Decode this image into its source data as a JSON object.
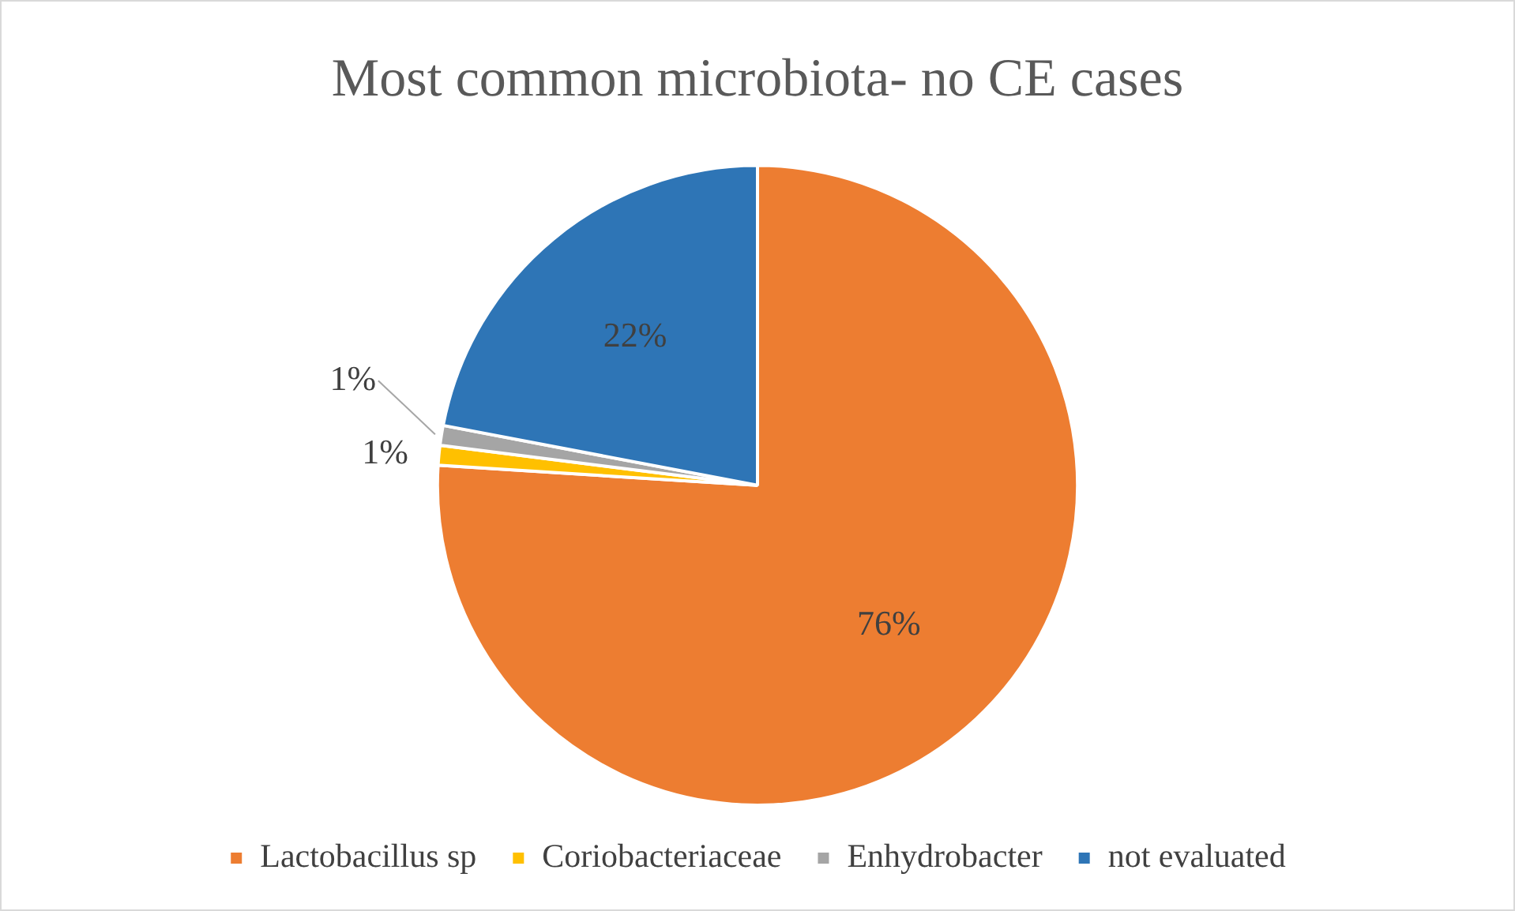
{
  "chart_data": {
    "type": "pie",
    "title": "Most common microbiota- no CE cases",
    "categories": [
      "Lactobacillus sp",
      "Coriobacteriaceae",
      "Enhydrobacter",
      "not evaluated"
    ],
    "values": [
      76,
      1,
      1,
      22
    ],
    "value_labels": [
      "76%",
      "1%",
      "1%",
      "22%"
    ],
    "colors": [
      "#ed7d31",
      "#ffc000",
      "#a5a5a5",
      "#2e75b6"
    ],
    "legend": "bottom"
  }
}
